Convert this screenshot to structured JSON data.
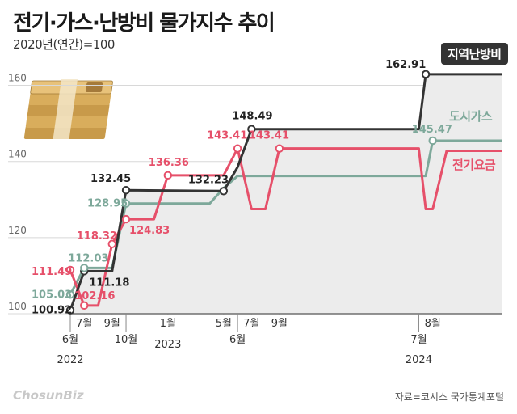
{
  "title": "전기·가스·난방비 물가지수 추이",
  "subtitle": "2020년(연간)=100",
  "source": "자료=코시스 국가통계포털",
  "logo": "ChosunBiz",
  "chart_data": {
    "type": "line",
    "title": "전기·가스·난방비 물가지수 추이",
    "subtitle": "2020년(연간)=100",
    "y_ticks": [
      100,
      120,
      140,
      160
    ],
    "ylim": [
      100,
      165
    ],
    "grid": true,
    "legend_placement": "right",
    "x_axis_labels": [
      {
        "month": "6월",
        "year": "2022",
        "t": 0
      },
      {
        "month": "7월",
        "t": 1
      },
      {
        "month": "9월",
        "t": 3
      },
      {
        "month": "10월",
        "t": 4
      },
      {
        "month": "1월",
        "year": "2023",
        "t": 7
      },
      {
        "month": "5월",
        "t": 11
      },
      {
        "month": "6월",
        "t": 12
      },
      {
        "month": "7월",
        "t": 13
      },
      {
        "month": "9월",
        "t": 15
      },
      {
        "month": "7월",
        "year": "2024",
        "t": 25
      },
      {
        "month": "8월",
        "t": 26
      }
    ],
    "series": [
      {
        "name": "지역난방비",
        "color": "#333333",
        "points": [
          [
            0,
            100.92
          ],
          [
            1,
            111.18
          ],
          [
            3,
            111.18
          ],
          [
            4,
            132.45
          ],
          [
            11,
            132.23
          ],
          [
            12,
            138.5
          ],
          [
            13,
            148.49
          ],
          [
            25,
            148.49
          ],
          [
            25.5,
            162.91
          ],
          [
            31,
            162.91
          ]
        ],
        "labels": [
          {
            "t": 0,
            "v": 100.92,
            "text": "100.92"
          },
          {
            "t": 1,
            "v": 111.18,
            "text": "111.18"
          },
          {
            "t": 4,
            "v": 132.45,
            "text": "132.45"
          },
          {
            "t": 11,
            "v": 132.23,
            "text": "132.23"
          },
          {
            "t": 13,
            "v": 148.49,
            "text": "148.49"
          },
          {
            "t": 25.5,
            "v": 162.91,
            "text": "162.91"
          }
        ]
      },
      {
        "name": "도시가스",
        "color": "#7da89a",
        "points": [
          [
            0,
            105.03
          ],
          [
            1,
            112.03
          ],
          [
            3,
            112.03
          ],
          [
            4,
            128.95
          ],
          [
            9,
            128.95
          ],
          [
            10,
            128.95
          ],
          [
            11,
            133
          ],
          [
            12,
            136.2
          ],
          [
            25,
            136.2
          ],
          [
            25.5,
            136.2
          ],
          [
            26,
            145.47
          ],
          [
            31,
            145.47
          ]
        ],
        "labels": [
          {
            "t": 0,
            "v": 105.03,
            "text": "105.03"
          },
          {
            "t": 1,
            "v": 112.03,
            "text": "112.03"
          },
          {
            "t": 4,
            "v": 128.95,
            "text": "128.95"
          },
          {
            "t": 26,
            "v": 145.47,
            "text": "145.47"
          }
        ]
      },
      {
        "name": "전기요금",
        "color": "#e6506a",
        "points": [
          [
            0,
            111.49
          ],
          [
            1,
            102.16
          ],
          [
            2,
            102.16
          ],
          [
            3,
            118.32
          ],
          [
            4,
            124.83
          ],
          [
            6,
            124.83
          ],
          [
            7,
            136.36
          ],
          [
            11,
            136.36
          ],
          [
            12,
            143.41
          ],
          [
            13,
            127.5
          ],
          [
            14,
            127.5
          ],
          [
            15,
            143.41
          ],
          [
            25,
            143.41
          ],
          [
            25.5,
            127.5
          ],
          [
            26,
            127.5
          ],
          [
            27,
            142.8
          ],
          [
            31,
            142.8
          ]
        ],
        "labels": [
          {
            "t": 0,
            "v": 111.49,
            "text": "111.49"
          },
          {
            "t": 1,
            "v": 102.16,
            "text": "102.16"
          },
          {
            "t": 3,
            "v": 118.32,
            "text": "118.32"
          },
          {
            "t": 4,
            "v": 124.83,
            "text": "124.83"
          },
          {
            "t": 7,
            "v": 136.36,
            "text": "136.36"
          },
          {
            "t": 12,
            "v": 143.41,
            "text": "143.41"
          },
          {
            "t": 15,
            "v": 143.41,
            "text": "143.41"
          }
        ]
      }
    ]
  }
}
